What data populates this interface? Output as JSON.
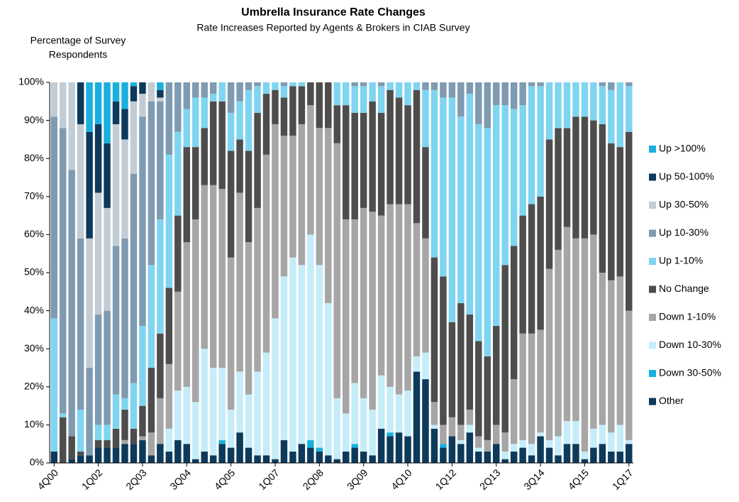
{
  "chart_data": {
    "type": "stacked_bar",
    "title": "Umbrella Insurance Rate Changes",
    "subtitle": "Rate Increases Reported by Agents & Brokers in CIAB Survey",
    "y_label": [
      "Percentage of Survey",
      "Respondents"
    ],
    "categories": [
      "4Q00",
      null,
      null,
      null,
      null,
      "1Q02",
      null,
      null,
      null,
      null,
      "2Q03",
      null,
      null,
      null,
      null,
      "3Q04",
      null,
      null,
      null,
      null,
      "4Q05",
      null,
      null,
      null,
      null,
      "1Q07",
      null,
      null,
      null,
      null,
      "2Q08",
      null,
      null,
      null,
      null,
      "3Q09",
      null,
      null,
      null,
      null,
      "4Q10",
      null,
      null,
      null,
      null,
      "1Q12",
      null,
      null,
      null,
      null,
      "2Q13",
      null,
      null,
      null,
      null,
      "3Q14",
      null,
      null,
      null,
      null,
      "4Q15",
      null,
      null,
      null,
      null,
      "1Q17"
    ],
    "ylim": [
      0,
      100
    ],
    "yticks": [
      {
        "value": 0,
        "label": "0%"
      },
      {
        "value": 10,
        "label": "10%"
      },
      {
        "value": 20,
        "label": "20%"
      },
      {
        "value": 30,
        "label": "30%"
      },
      {
        "value": 40,
        "label": "40%"
      },
      {
        "value": 50,
        "label": "50%"
      },
      {
        "value": 60,
        "label": "60%"
      },
      {
        "value": 70,
        "label": "70%"
      },
      {
        "value": 80,
        "label": "80%"
      },
      {
        "value": 90,
        "label": "90%"
      },
      {
        "value": 100,
        "label": "100%"
      }
    ],
    "legend": "right",
    "series": [
      {
        "name": "Other",
        "color": "#0c3a5b",
        "values": [
          3,
          0,
          1,
          2,
          2,
          4,
          4,
          4,
          5,
          5,
          6,
          2,
          5,
          3,
          6,
          5,
          1,
          3,
          2,
          5,
          4,
          8,
          4,
          2,
          2,
          1,
          6,
          3,
          5,
          4,
          3,
          2,
          1,
          3,
          4,
          3,
          2,
          9,
          7,
          8,
          7,
          24,
          22,
          9,
          4,
          7,
          5,
          8,
          3,
          3,
          5,
          1,
          3,
          4,
          2,
          7,
          4,
          2,
          5,
          5,
          1,
          4,
          5,
          3,
          3,
          5
        ]
      },
      {
        "name": "Down 30-50%",
        "color": "#15b2df",
        "values": [
          0,
          0,
          0,
          0,
          0,
          0,
          0,
          0,
          0,
          0,
          0,
          0,
          0,
          0,
          0,
          0,
          0,
          0,
          0,
          1,
          0,
          0,
          0,
          0,
          0,
          0,
          0,
          0,
          0,
          2,
          1,
          0,
          0,
          0,
          1,
          0,
          0,
          0,
          1,
          0,
          0,
          0,
          0,
          0,
          1,
          0,
          0,
          0,
          0,
          0,
          0,
          0,
          0,
          0,
          0,
          0,
          0,
          0,
          0,
          0,
          0,
          0,
          0,
          0,
          0,
          0
        ]
      },
      {
        "name": "Down 10-30%",
        "color": "#c5edf9",
        "values": [
          0,
          0,
          0,
          0,
          0,
          0,
          0,
          0,
          0,
          0,
          0,
          0,
          0,
          6,
          13,
          15,
          15,
          27,
          23,
          19,
          10,
          16,
          14,
          22,
          27,
          37,
          43,
          51,
          47,
          54,
          48,
          40,
          16,
          10,
          16,
          14,
          12,
          14,
          12,
          10,
          12,
          4,
          7,
          1,
          0,
          0,
          1,
          2,
          1,
          0,
          0,
          2,
          2,
          2,
          3,
          1,
          2,
          5,
          6,
          6,
          2,
          5,
          5,
          5,
          7,
          1
        ]
      },
      {
        "name": "Down 1-10%",
        "color": "#a6a6a6",
        "values": [
          0,
          0,
          0,
          0,
          0,
          0,
          0,
          0,
          1,
          0,
          1,
          6,
          12,
          17,
          26,
          38,
          48,
          43,
          48,
          47,
          40,
          47,
          40,
          43,
          52,
          51,
          37,
          32,
          37,
          34,
          36,
          46,
          67,
          51,
          43,
          50,
          52,
          42,
          48,
          50,
          49,
          35,
          30,
          6,
          5,
          5,
          4,
          4,
          3,
          3,
          5,
          5,
          17,
          28,
          29,
          27,
          45,
          49,
          51,
          48,
          56,
          51,
          40,
          40,
          39,
          34
        ]
      },
      {
        "name": "No Change",
        "color": "#4d4d4d",
        "values": [
          0,
          12,
          6,
          1,
          0,
          2,
          2,
          5,
          8,
          4,
          8,
          17,
          17,
          20,
          20,
          25,
          19,
          15,
          22,
          23,
          28,
          14,
          24,
          25,
          16,
          9,
          10,
          13,
          10,
          6,
          12,
          12,
          10,
          30,
          28,
          25,
          29,
          27,
          30,
          28,
          26,
          35,
          24,
          38,
          39,
          25,
          32,
          25,
          25,
          22,
          26,
          44,
          35,
          31,
          34,
          35,
          34,
          32,
          26,
          32,
          32,
          30,
          39,
          36,
          34,
          47
        ]
      },
      {
        "name": "Up 1-10%",
        "color": "#7fd5f1",
        "values": [
          35,
          1,
          0,
          11,
          0,
          4,
          4,
          9,
          3,
          12,
          21,
          27,
          30,
          35,
          22,
          10,
          13,
          8,
          2,
          5,
          10,
          10,
          16,
          7,
          3,
          2,
          3,
          1,
          1,
          0,
          0,
          0,
          6,
          6,
          7,
          7,
          5,
          7,
          2,
          4,
          6,
          2,
          15,
          44,
          47,
          59,
          49,
          58,
          57,
          60,
          58,
          42,
          36,
          29,
          31,
          29,
          15,
          12,
          12,
          9,
          9,
          10,
          10,
          14,
          17,
          12
        ]
      },
      {
        "name": "Up 10-30%",
        "color": "#7f9bb1",
        "values": [
          53,
          75,
          70,
          45,
          23,
          29,
          30,
          39,
          42,
          55,
          55,
          43,
          31,
          19,
          13,
          7,
          4,
          4,
          3,
          0,
          8,
          5,
          2,
          1,
          0,
          0,
          1,
          0,
          0,
          0,
          0,
          0,
          0,
          0,
          1,
          1,
          0,
          1,
          0,
          0,
          0,
          0,
          2,
          2,
          4,
          4,
          9,
          3,
          11,
          12,
          6,
          6,
          7,
          6,
          1,
          1,
          0,
          0,
          0,
          0,
          0,
          0,
          1,
          2,
          0,
          1
        ]
      },
      {
        "name": "Up 30-50%",
        "color": "#c1ccd5",
        "values": [
          9,
          12,
          23,
          30,
          34,
          32,
          27,
          32,
          26,
          19,
          6,
          5,
          1,
          0,
          0,
          0,
          0,
          0,
          0,
          0,
          0,
          0,
          0,
          0,
          0,
          0,
          0,
          0,
          0,
          0,
          0,
          0,
          0,
          0,
          0,
          0,
          0,
          0,
          0,
          0,
          0,
          0,
          0,
          0,
          0,
          0,
          0,
          0,
          0,
          0,
          0,
          0,
          0,
          0,
          0,
          0,
          0,
          0,
          0,
          0,
          0,
          0,
          0,
          0,
          0,
          0
        ]
      },
      {
        "name": "Up 50-100%",
        "color": "#0d3a5c",
        "values": [
          0,
          0,
          0,
          11,
          28,
          18,
          17,
          6,
          8,
          4,
          3,
          0,
          2,
          0,
          0,
          0,
          0,
          0,
          0,
          0,
          0,
          0,
          0,
          0,
          0,
          0,
          0,
          0,
          0,
          0,
          0,
          0,
          0,
          0,
          0,
          0,
          0,
          0,
          0,
          0,
          0,
          0,
          0,
          0,
          0,
          0,
          0,
          0,
          0,
          0,
          0,
          0,
          0,
          0,
          0,
          0,
          0,
          0,
          0,
          0,
          0,
          0,
          0,
          0,
          0,
          0
        ]
      },
      {
        "name": "Up >100%",
        "color": "#1ab0de",
        "values": [
          0,
          0,
          0,
          0,
          13,
          11,
          16,
          5,
          7,
          1,
          0,
          0,
          2,
          0,
          0,
          0,
          0,
          0,
          0,
          0,
          0,
          0,
          0,
          0,
          0,
          0,
          0,
          0,
          0,
          0,
          0,
          0,
          0,
          0,
          0,
          0,
          0,
          0,
          0,
          0,
          0,
          0,
          0,
          0,
          0,
          0,
          0,
          0,
          0,
          0,
          0,
          0,
          0,
          0,
          0,
          0,
          0,
          0,
          0,
          0,
          0,
          0,
          0,
          0,
          0,
          0
        ]
      }
    ]
  }
}
